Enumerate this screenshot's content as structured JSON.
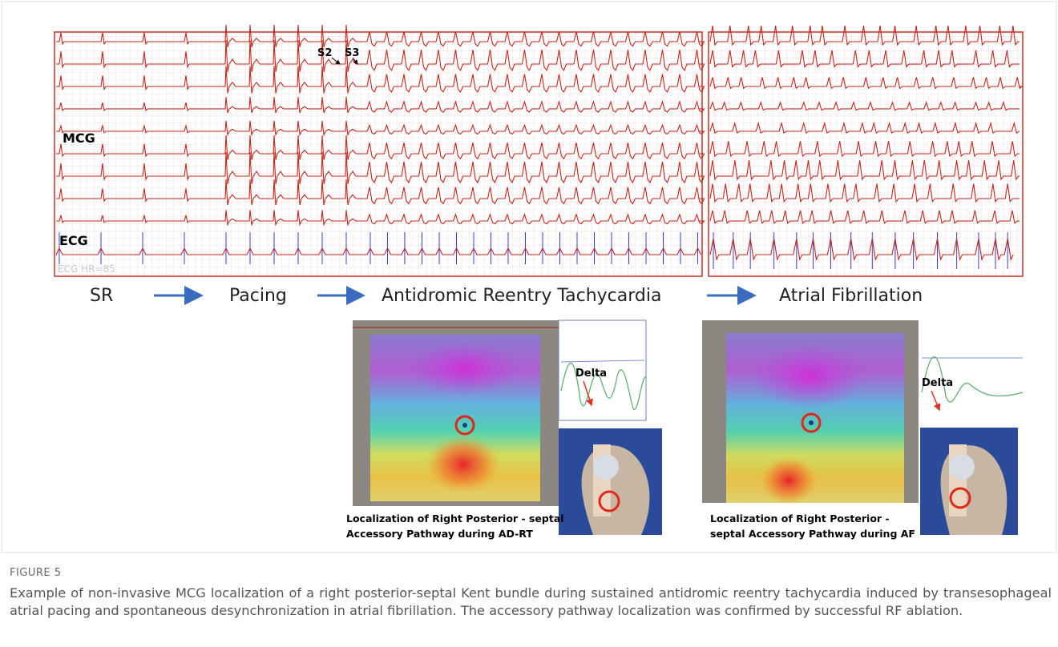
{
  "figure": {
    "panel_labels": {
      "s2": "S2",
      "s3": "S3",
      "mcg": "MCG",
      "ecg": "ECG",
      "ecg_hr": "ECG HR=85"
    },
    "phases": [
      "SR",
      "Pacing",
      "Antidromic Reentry Tachycardia",
      "Atrial Fibrillation"
    ],
    "maps": [
      {
        "delta": "Delta",
        "caption": [
          "Localization of Right Posterior - septal",
          "Accessory Pathway during AD-RT"
        ]
      },
      {
        "delta": "Delta",
        "caption": [
          "Localization of Right Posterior -",
          "septal Accessory Pathway during AF"
        ]
      }
    ],
    "label": "FIGURE 5",
    "caption": "Example of non-invasive MCG localization of a right posterior-septal Kent bundle during sustained antidromic reentry tachycardia induced by transesophageal atrial pacing and spontaneous desynchronization in atrial fibrillation. The accessory pathway localization was confirmed by successful RF ablation."
  }
}
